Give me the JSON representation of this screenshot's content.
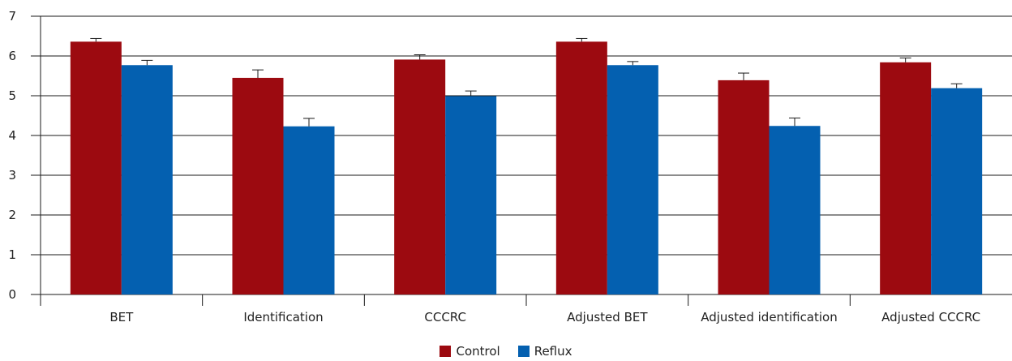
{
  "chart_data": {
    "type": "bar",
    "categories": [
      "BET",
      "Identification",
      "CCCRC",
      "Adjusted BET",
      "Adjusted identification",
      "Adjusted CCCRC"
    ],
    "series": [
      {
        "name": "Control",
        "color": "#9c0a10",
        "values": [
          6.36,
          5.45,
          5.91,
          6.36,
          5.39,
          5.84
        ],
        "errors": [
          0.08,
          0.2,
          0.12,
          0.08,
          0.18,
          0.11
        ]
      },
      {
        "name": "Reflux",
        "color": "#0460b0",
        "values": [
          5.77,
          4.23,
          4.99,
          5.77,
          4.24,
          5.19
        ],
        "errors": [
          0.12,
          0.2,
          0.13,
          0.09,
          0.2,
          0.11
        ]
      }
    ],
    "ylim": [
      0,
      7
    ],
    "yticks": [
      "0",
      "1",
      "2",
      "3",
      "4",
      "5",
      "6",
      "7"
    ],
    "grid": true,
    "legend_position": "bottom-center"
  }
}
